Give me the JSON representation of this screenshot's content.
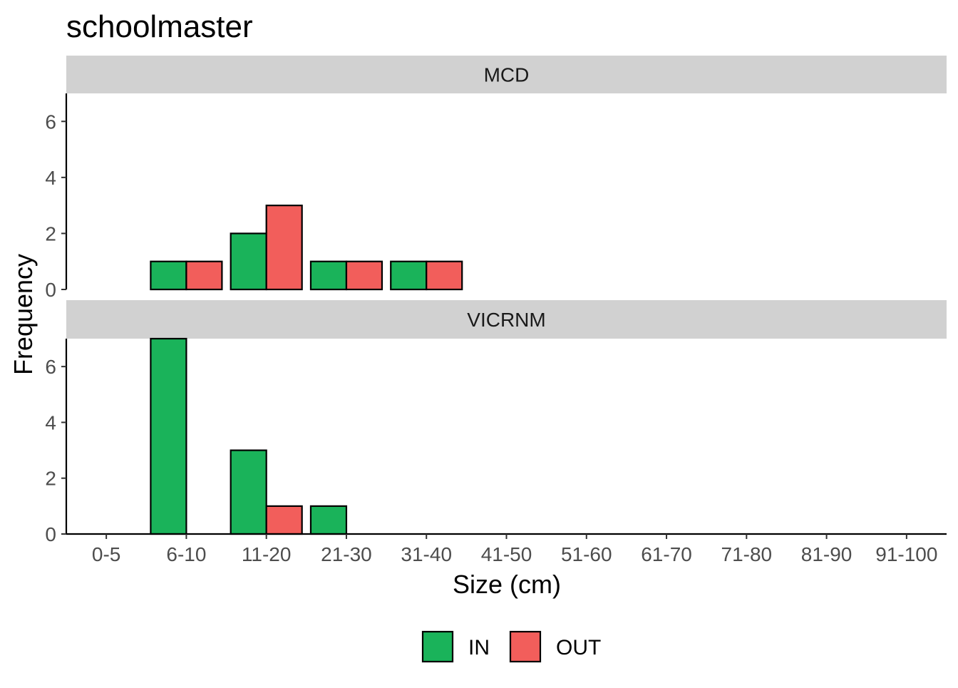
{
  "chart_data": {
    "type": "bar",
    "title": "schoolmaster",
    "xlabel": "Size (cm)",
    "ylabel": "Frequency",
    "categories": [
      "0-5",
      "6-10",
      "11-20",
      "21-30",
      "31-40",
      "41-50",
      "51-60",
      "61-70",
      "71-80",
      "81-90",
      "91-100"
    ],
    "ylim": [
      0,
      7
    ],
    "yticks": [
      0,
      2,
      4,
      6
    ],
    "grid": false,
    "legend_position": "bottom",
    "series_colors": {
      "IN": "#1ab35a",
      "OUT": "#f25e5b"
    },
    "facets": [
      {
        "label": "MCD",
        "series": [
          {
            "name": "IN",
            "values": [
              0,
              1,
              2,
              1,
              1,
              0,
              0,
              0,
              0,
              0,
              0
            ]
          },
          {
            "name": "OUT",
            "values": [
              0,
              1,
              3,
              1,
              1,
              0,
              0,
              0,
              0,
              0,
              0
            ]
          }
        ]
      },
      {
        "label": "VICRNM",
        "series": [
          {
            "name": "IN",
            "values": [
              0,
              7,
              3,
              1,
              0,
              0,
              0,
              0,
              0,
              0,
              0
            ]
          },
          {
            "name": "OUT",
            "values": [
              0,
              0,
              1,
              0,
              0,
              0,
              0,
              0,
              0,
              0,
              0
            ]
          }
        ]
      }
    ],
    "legend": [
      {
        "name": "IN",
        "color": "#1ab35a"
      },
      {
        "name": "OUT",
        "color": "#f25e5b"
      }
    ]
  }
}
